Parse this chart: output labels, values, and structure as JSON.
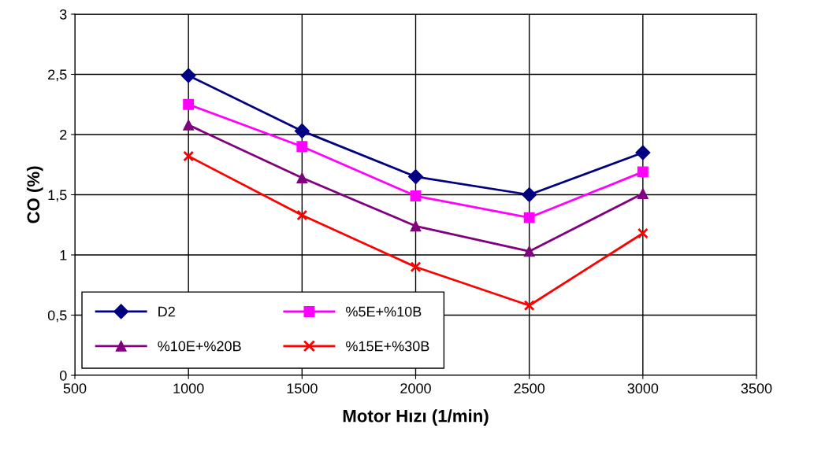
{
  "chart_data": {
    "type": "line",
    "xlabel": "Motor Hızı (1/min)",
    "ylabel": "CO (%)",
    "x": [
      1000,
      1500,
      2000,
      2500,
      3000
    ],
    "series": [
      {
        "name": "D2",
        "color": "#000080",
        "marker": "diamond",
        "values": [
          2.49,
          2.03,
          1.65,
          1.5,
          1.85
        ]
      },
      {
        "name": "%5E+%10B",
        "color": "#ff00ff",
        "marker": "square",
        "values": [
          2.25,
          1.9,
          1.49,
          1.31,
          1.69
        ]
      },
      {
        "name": "%10E+%20B",
        "color": "#800080",
        "marker": "triangle",
        "values": [
          2.08,
          1.64,
          1.24,
          1.03,
          1.51
        ]
      },
      {
        "name": "%15E+%30B",
        "color": "#ff0000",
        "marker": "cross",
        "values": [
          1.82,
          1.33,
          0.9,
          0.58,
          1.18
        ]
      }
    ],
    "xlim": [
      500,
      3500
    ],
    "xticks": [
      500,
      1000,
      1500,
      2000,
      2500,
      3000,
      3500
    ],
    "ylim": [
      0,
      3
    ],
    "yticks": [
      0,
      {
        "value": 0.5,
        "label": "0,5"
      },
      1,
      {
        "value": 1.5,
        "label": "1,5"
      },
      2,
      {
        "value": 2.5,
        "label": "2,5"
      },
      3
    ],
    "grid": true,
    "legend": "bottom left",
    "line_style": "solid"
  }
}
